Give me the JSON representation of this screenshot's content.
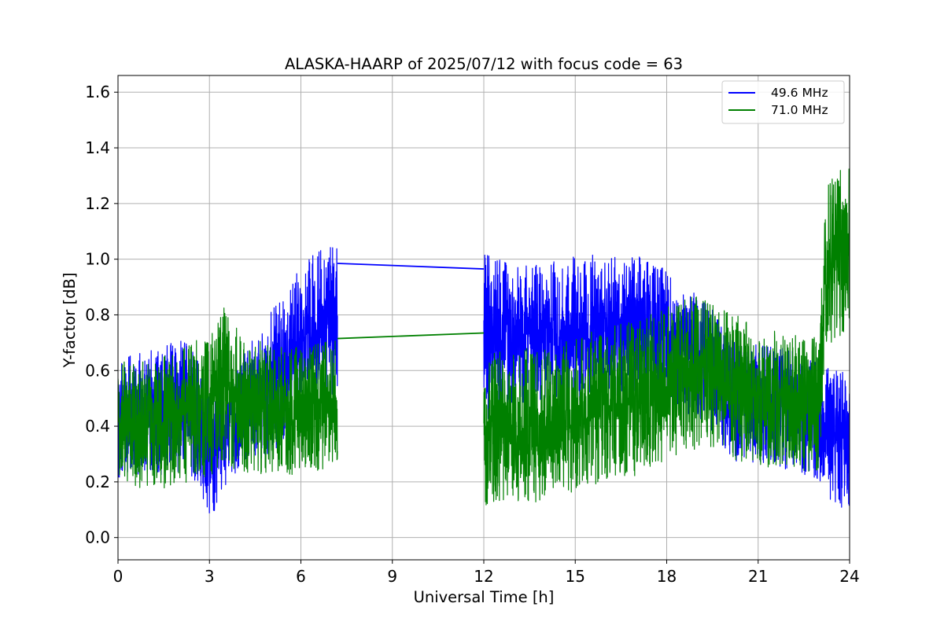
{
  "chart_data": {
    "type": "line",
    "title": "ALASKA-HAARP of 2025/07/12 with focus code = 63",
    "xlabel": "Universal Time [h]",
    "ylabel": "Y-factor [dB]",
    "xlim": [
      0,
      24
    ],
    "ylim": [
      -0.08,
      1.66
    ],
    "xticks": [
      0,
      3,
      6,
      9,
      12,
      15,
      18,
      21,
      24
    ],
    "yticks": [
      0.0,
      0.2,
      0.4,
      0.6,
      0.8,
      1.0,
      1.2,
      1.4,
      1.6
    ],
    "xtick_labels": [
      "0",
      "3",
      "6",
      "9",
      "12",
      "15",
      "18",
      "21",
      "24"
    ],
    "ytick_labels": [
      "0.0",
      "0.2",
      "0.4",
      "0.6",
      "0.8",
      "1.0",
      "1.2",
      "1.4",
      "1.6"
    ],
    "grid": true,
    "legend_position": "top-right",
    "series": [
      {
        "name": "49.6 MHz",
        "color": "#0000ff",
        "gap": [
          7.2,
          12.0
        ],
        "envelope": {
          "x": [
            0,
            1,
            2,
            2.5,
            3,
            3.5,
            4,
            4.5,
            5,
            5.5,
            6,
            6.5,
            7.2,
            12.0,
            12.5,
            13,
            14,
            15,
            16,
            17,
            18,
            19,
            19.5,
            20,
            21,
            22,
            22.5,
            23,
            23.5,
            24
          ],
          "mid": [
            0.42,
            0.45,
            0.46,
            0.45,
            0.3,
            0.38,
            0.45,
            0.5,
            0.55,
            0.62,
            0.7,
            0.75,
            0.78,
            0.72,
            0.72,
            0.72,
            0.74,
            0.75,
            0.76,
            0.77,
            0.72,
            0.65,
            0.6,
            0.5,
            0.48,
            0.46,
            0.44,
            0.42,
            0.36,
            0.35
          ],
          "amp": [
            0.22,
            0.22,
            0.25,
            0.24,
            0.25,
            0.2,
            0.2,
            0.22,
            0.26,
            0.26,
            0.28,
            0.28,
            0.28,
            0.3,
            0.28,
            0.26,
            0.25,
            0.26,
            0.26,
            0.25,
            0.24,
            0.22,
            0.22,
            0.22,
            0.22,
            0.22,
            0.22,
            0.22,
            0.25,
            0.25
          ]
        },
        "bridge": [
          [
            7.2,
            0.985
          ],
          [
            12.0,
            0.965
          ]
        ]
      },
      {
        "name": "71.0 MHz",
        "color": "#008000",
        "gap": [
          7.2,
          12.0
        ],
        "envelope": {
          "x": [
            0,
            1,
            2,
            3,
            3.5,
            4,
            5,
            6,
            7.2,
            12.0,
            12.5,
            13,
            14,
            15,
            16,
            17,
            18,
            19,
            20,
            21,
            22,
            22.5,
            23,
            23.2,
            23.5,
            24
          ],
          "mid": [
            0.42,
            0.4,
            0.43,
            0.48,
            0.55,
            0.48,
            0.45,
            0.46,
            0.48,
            0.4,
            0.4,
            0.4,
            0.4,
            0.44,
            0.48,
            0.5,
            0.55,
            0.6,
            0.55,
            0.5,
            0.5,
            0.48,
            0.48,
            0.95,
            1.0,
            1.05
          ],
          "amp": [
            0.22,
            0.24,
            0.24,
            0.26,
            0.28,
            0.25,
            0.25,
            0.23,
            0.23,
            0.3,
            0.28,
            0.28,
            0.28,
            0.28,
            0.28,
            0.28,
            0.28,
            0.28,
            0.27,
            0.25,
            0.24,
            0.24,
            0.25,
            0.3,
            0.3,
            0.3
          ]
        },
        "bridge": [
          [
            7.2,
            0.715
          ],
          [
            12.0,
            0.735
          ]
        ]
      }
    ]
  }
}
